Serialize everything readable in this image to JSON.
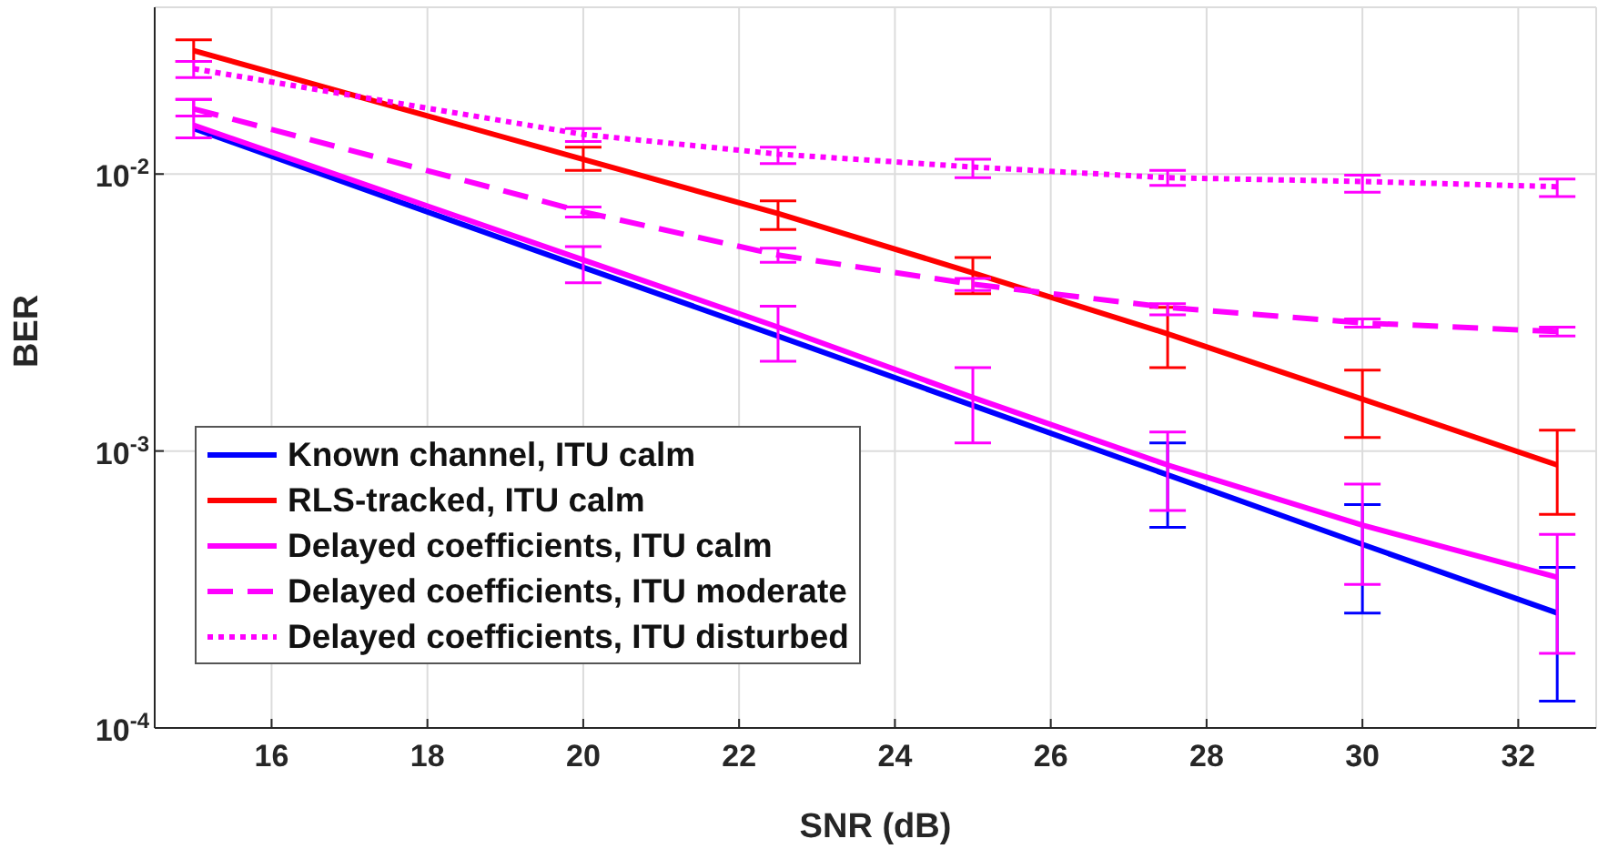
{
  "chart_data": {
    "type": "line",
    "xlabel": "SNR (dB)",
    "ylabel": "BER",
    "x": [
      15,
      20,
      22.5,
      25,
      27.5,
      30,
      32.5
    ],
    "xlim": [
      14.5,
      33
    ],
    "xticks": [
      16,
      18,
      20,
      22,
      24,
      26,
      28,
      30,
      32
    ],
    "log": "y",
    "ylim": [
      0.0001,
      0.04
    ],
    "yticks": [
      {
        "value": 0.0001,
        "label": "10$^{-4}$"
      },
      {
        "value": 0.001,
        "label": "10$^{-3}$"
      },
      {
        "value": 0.01,
        "label": "10$^{-2}$"
      }
    ],
    "grid": true,
    "legend": "bottom left",
    "marker": "none",
    "series": [
      {
        "name": "Known channel, ITU calm",
        "color": "#0000ff",
        "line_style": "solid",
        "values": [
          0.0146,
          0.0046,
          0.0026,
          0.00146,
          0.00082,
          0.00046,
          0.00026
        ],
        "errors": [
          null,
          null,
          null,
          null,
          [
            0.00053,
            0.00107
          ],
          [
            0.00026,
            0.00064
          ],
          [
            0.000125,
            0.00038
          ]
        ]
      },
      {
        "name": "RLS-tracked, ITU calm",
        "color": "#ff0000",
        "line_style": "solid",
        "values": [
          0.0279,
          0.0113,
          0.0072,
          0.0044,
          0.00265,
          0.00154,
          0.00089
        ],
        "errors": [
          [
            0.0255,
            0.0305
          ],
          [
            0.0103,
            0.0125
          ],
          [
            0.0063,
            0.008
          ],
          [
            0.0037,
            0.005
          ],
          [
            0.002,
            0.0033
          ],
          [
            0.00112,
            0.00196
          ],
          [
            0.00059,
            0.00119
          ]
        ]
      },
      {
        "name": "Delayed coefficients, ITU calm",
        "color": "#ff00ff",
        "line_style": "solid",
        "values": [
          0.015,
          0.0049,
          0.0028,
          0.00156,
          0.00089,
          0.00054,
          0.00035
        ],
        "errors": [
          [
            0.0135,
            0.0186
          ],
          [
            0.00405,
            0.00547
          ],
          [
            0.00211,
            0.00333
          ],
          [
            0.00107,
            0.002
          ],
          [
            0.00061,
            0.00117
          ],
          [
            0.00033,
            0.00076
          ],
          [
            0.000186,
            0.0005
          ]
        ]
      },
      {
        "name": "Delayed coefficients, ITU moderate",
        "color": "#ff00ff",
        "line_style": "dashed",
        "values": [
          0.0172,
          0.0073,
          0.0051,
          0.004,
          0.0033,
          0.0029,
          0.0027
        ],
        "errors": [
          [
            0.0162,
            0.0186
          ],
          [
            0.007,
            0.0076
          ],
          [
            0.0048,
            0.0054
          ],
          [
            0.0038,
            0.0042
          ],
          [
            0.0031,
            0.0034
          ],
          [
            0.0028,
            0.003
          ],
          [
            0.0026,
            0.0028
          ]
        ]
      },
      {
        "name": "Delayed coefficients, ITU disturbed",
        "color": "#ff00ff",
        "line_style": "dotted",
        "values": [
          0.024,
          0.0139,
          0.0118,
          0.0106,
          0.0097,
          0.0094,
          0.009
        ],
        "errors": [
          [
            0.0223,
            0.0255
          ],
          [
            0.0131,
            0.0146
          ],
          [
            0.0109,
            0.0125
          ],
          [
            0.0097,
            0.0113
          ],
          [
            0.0091,
            0.0103
          ],
          [
            0.0086,
            0.0099
          ],
          [
            0.0083,
            0.0096
          ]
        ]
      }
    ]
  }
}
